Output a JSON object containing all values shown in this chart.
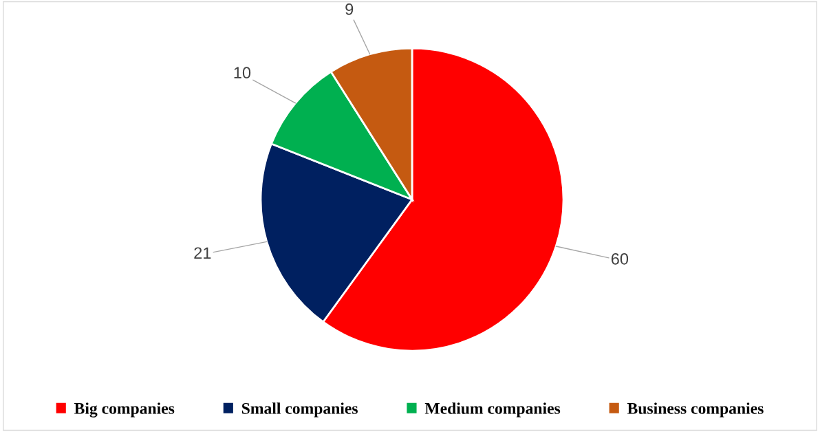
{
  "chart_data": {
    "type": "pie",
    "categories": [
      "Big companies",
      "Small companies",
      "Medium companies",
      "Business companies"
    ],
    "values": [
      60,
      21,
      10,
      9
    ],
    "colors": [
      "#ff0000",
      "#002060",
      "#00b050",
      "#c55a11"
    ],
    "data_labels": true,
    "legend": "bottom"
  }
}
